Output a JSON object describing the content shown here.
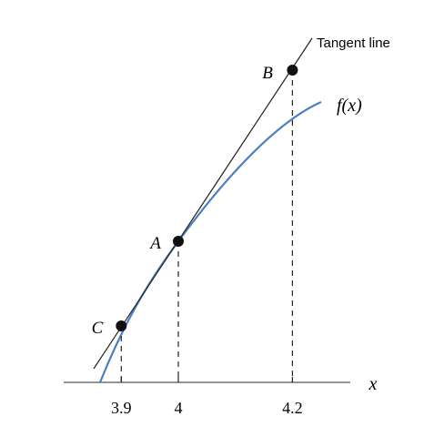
{
  "axis": {
    "label": "x",
    "ticks": [
      3.9,
      4,
      4.2
    ]
  },
  "curve_label": "f(x)",
  "tangent_label": "Tangent line",
  "points": [
    {
      "label": "C"
    },
    {
      "label": "A"
    },
    {
      "label": "B"
    }
  ]
}
